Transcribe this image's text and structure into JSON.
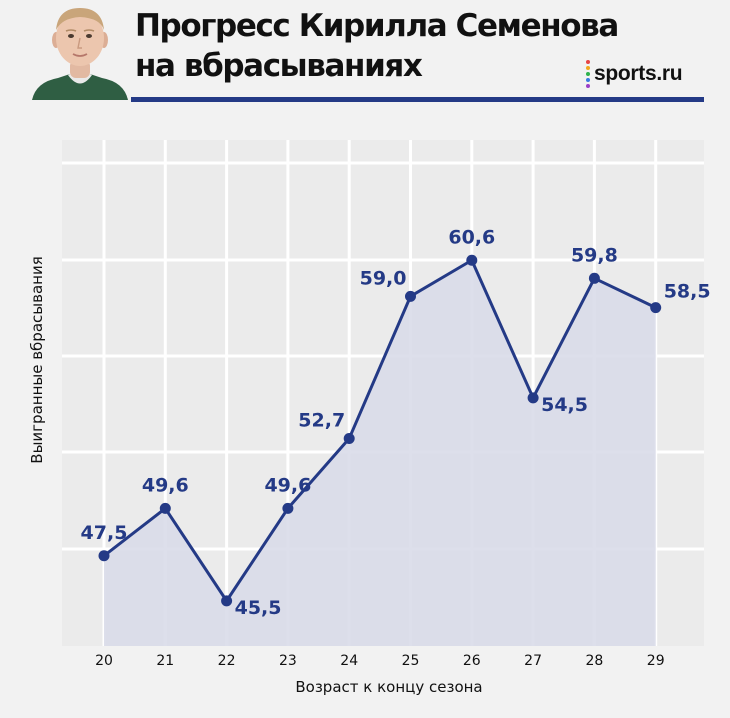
{
  "header": {
    "title_line1": "Прогресс Кирилла Семенова",
    "title_line2": "на вбрасываниях",
    "logo_text": "sports.ru",
    "logo_dot_colors": [
      "#e64545",
      "#f2a81d",
      "#2fb24c",
      "#3a7be0",
      "#9b3fc8"
    ],
    "accent_color": "#243a86"
  },
  "chart_data": {
    "type": "line",
    "xlabel": "Возраст к концу сезона",
    "ylabel": "Выигранные вбрасывания",
    "x": [
      20,
      21,
      22,
      23,
      24,
      25,
      26,
      27,
      28,
      29
    ],
    "x_tick_labels": [
      "20",
      "21",
      "22",
      "23",
      "24",
      "25",
      "26",
      "27",
      "28",
      "29"
    ],
    "values": [
      47.5,
      49.6,
      45.5,
      49.6,
      52.7,
      59.0,
      60.6,
      54.5,
      59.8,
      58.5
    ],
    "data_labels": [
      "47,5",
      "49,6",
      "45,5",
      "49,6",
      "52,7",
      "59,0",
      "60,6",
      "54,5",
      "59,8",
      "58,5"
    ],
    "ylim": [
      43.5,
      65
    ],
    "grid": true,
    "area_fill": true,
    "line_color": "#243a86",
    "fill_color": "#d9dbe9",
    "label_color": "#243a86"
  }
}
